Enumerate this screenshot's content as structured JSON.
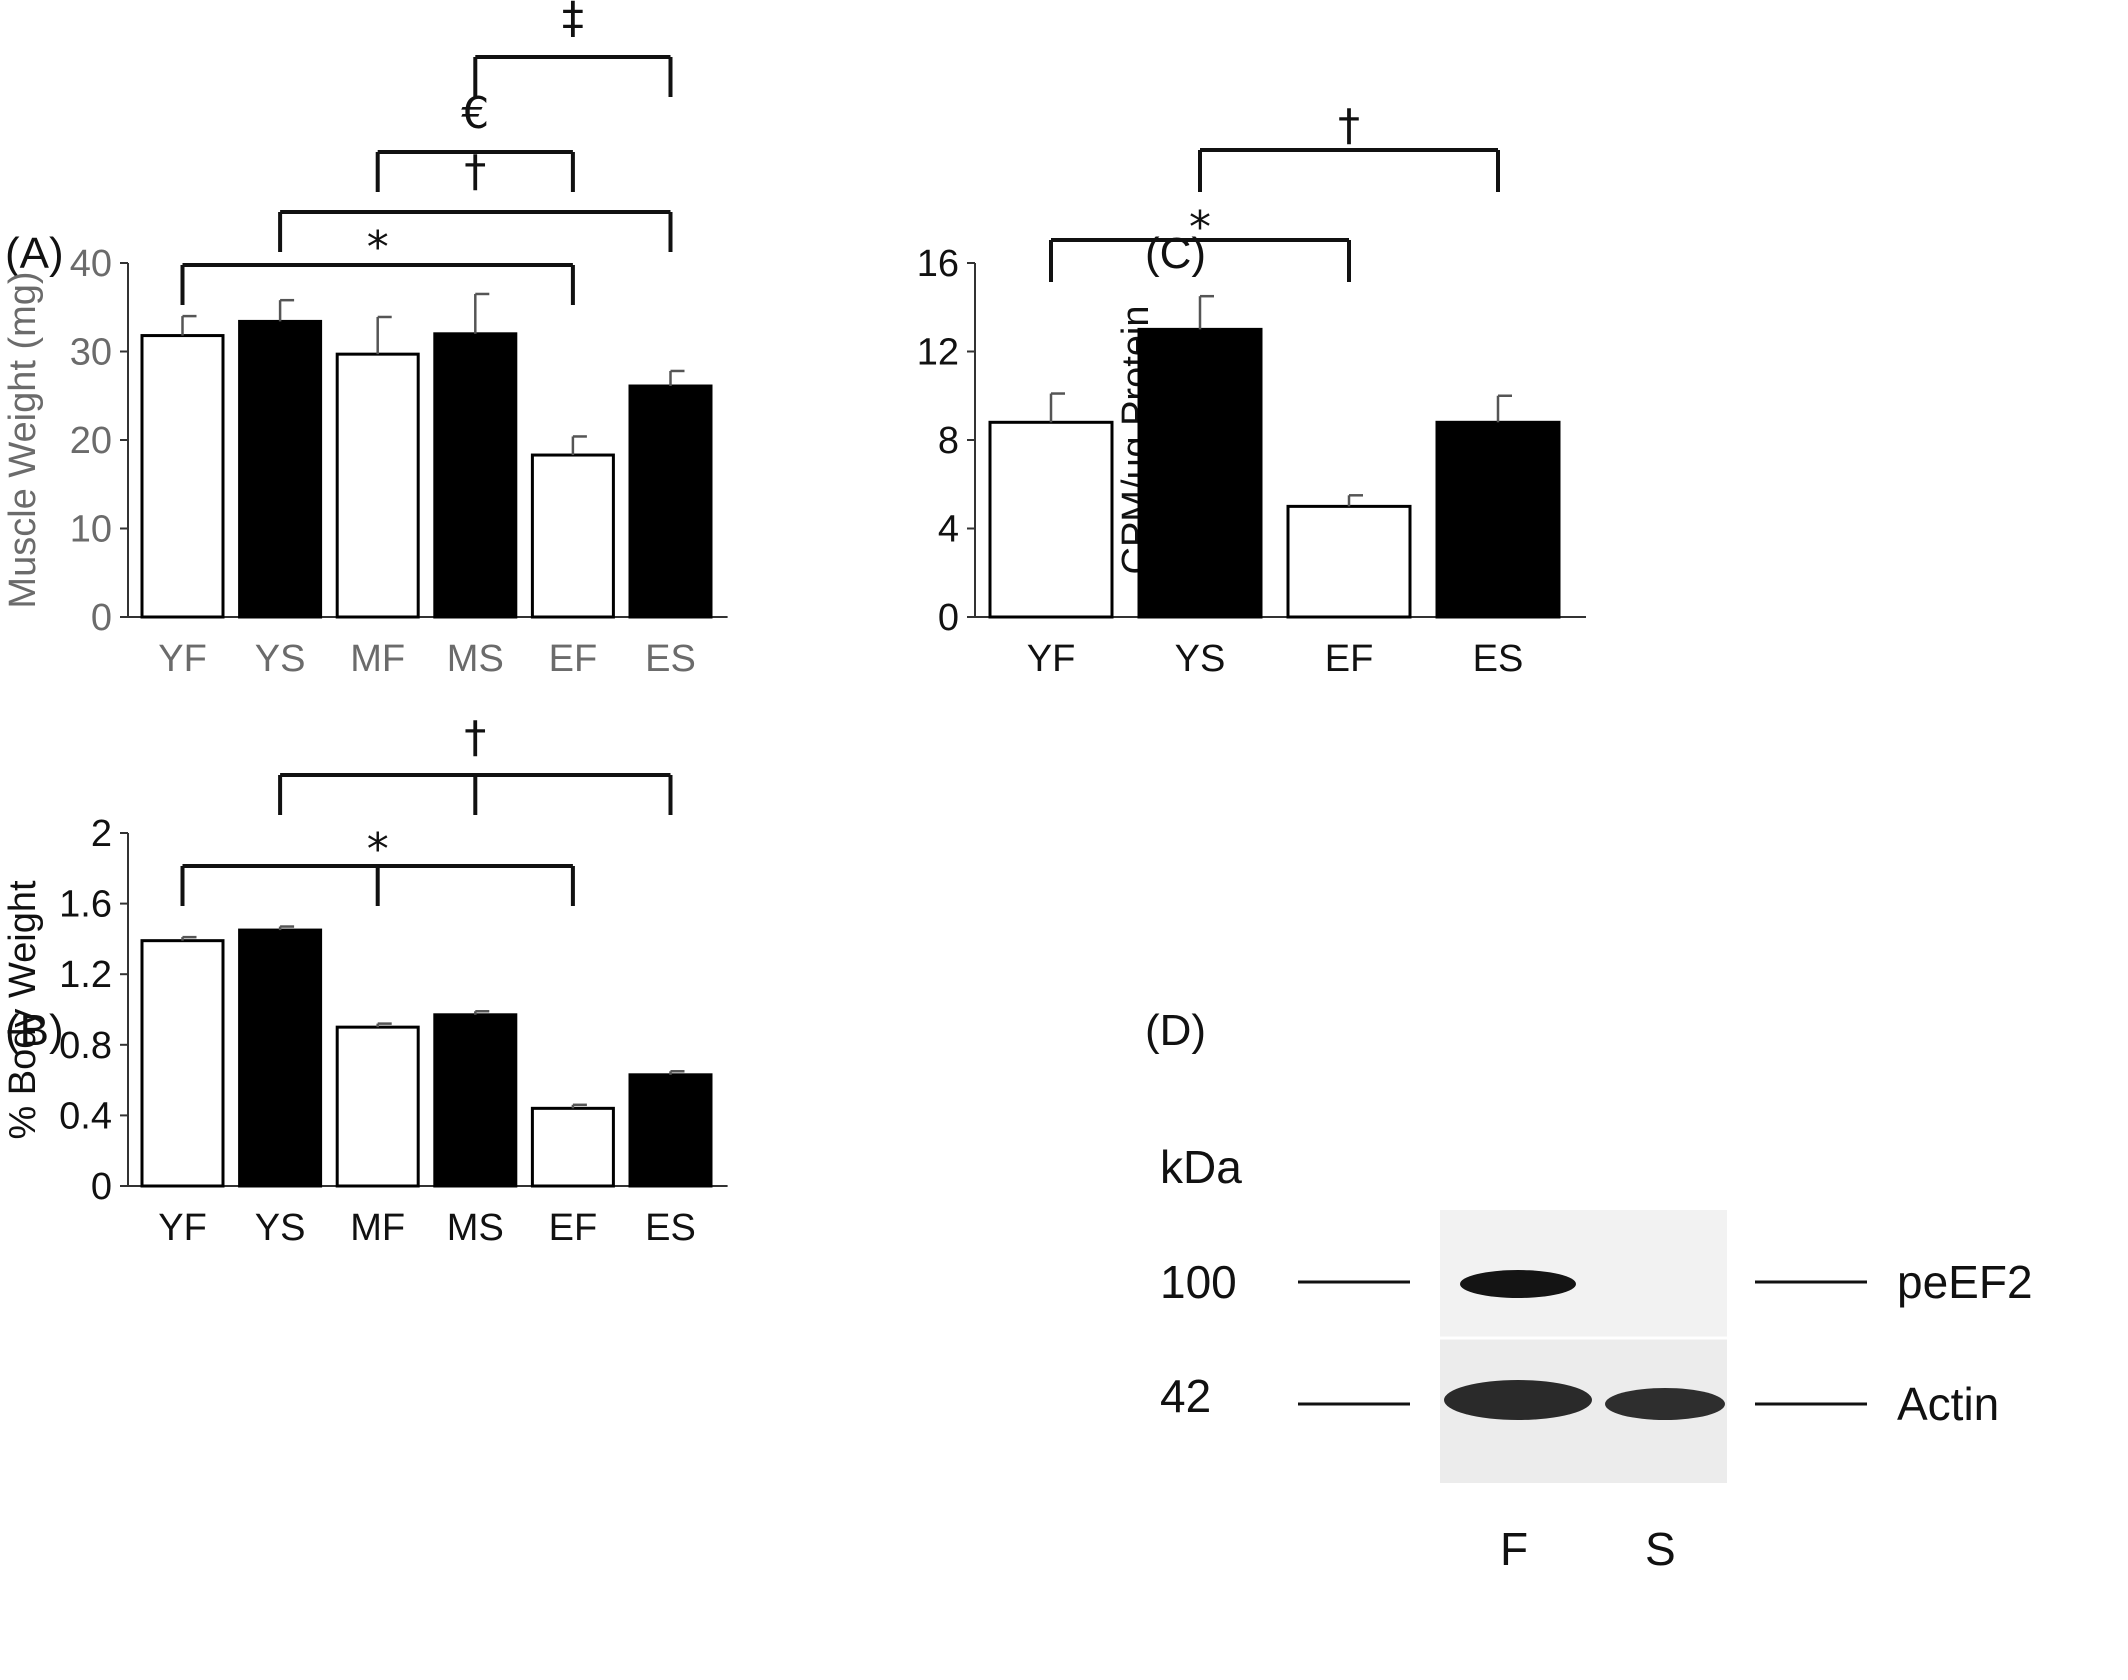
{
  "colors": {
    "filled": "#000000",
    "open": "#ffffff",
    "bar_stroke": "#000000",
    "axis_text_A": "#6b6b6b",
    "axis_text": "#111111",
    "axis_line": "#333333",
    "bracket": "#111111",
    "errbar": "#555555"
  },
  "chart_data": [
    {
      "panel": "(A)",
      "type": "bar",
      "ylabel": "Muscle Weight (mg)",
      "ylim": [
        0,
        40
      ],
      "yticks": [
        "0",
        "10",
        "20",
        "30",
        "40"
      ],
      "categories": [
        "YF",
        "YS",
        "MF",
        "MS",
        "EF",
        "ES"
      ],
      "values": [
        31.8,
        33.4,
        29.7,
        32.0,
        18.3,
        26.1
      ],
      "errors": [
        2.2,
        2.4,
        4.2,
        4.5,
        2.1,
        1.7
      ],
      "fills": [
        "open",
        "filled",
        "open",
        "filled",
        "open",
        "filled"
      ],
      "brackets": [
        {
          "symbol": "‡",
          "groups": [
            "MS",
            "ES"
          ]
        },
        {
          "symbol": "€",
          "groups": [
            "MF",
            "EF"
          ]
        },
        {
          "symbol": "†",
          "groups": [
            "YS",
            "ES"
          ]
        },
        {
          "symbol": "*",
          "groups": [
            "YF",
            "EF"
          ]
        }
      ]
    },
    {
      "panel": "(B)",
      "type": "bar",
      "ylabel": "% Body Weight",
      "ylim": [
        0,
        2
      ],
      "yticks": [
        "0",
        "0.4",
        "0.8",
        "1.2",
        "1.6",
        "2"
      ],
      "categories": [
        "YF",
        "YS",
        "MF",
        "MS",
        "EF",
        "ES"
      ],
      "values": [
        1.39,
        1.45,
        0.9,
        0.97,
        0.44,
        0.63
      ],
      "errors": [
        0.02,
        0.02,
        0.02,
        0.02,
        0.02,
        0.02
      ],
      "fills": [
        "open",
        "filled",
        "open",
        "filled",
        "open",
        "filled"
      ],
      "brackets": [
        {
          "symbol": "†",
          "groups": [
            "YS",
            "MS",
            "ES"
          ]
        },
        {
          "symbol": "*",
          "groups": [
            "YF",
            "MF",
            "EF"
          ]
        }
      ]
    },
    {
      "panel": "(C)",
      "type": "bar",
      "ylabel": "CPM/µg Protein",
      "ylim": [
        0,
        16
      ],
      "yticks": [
        "0",
        "4",
        "8",
        "12",
        "16"
      ],
      "categories": [
        "YF",
        "YS",
        "EF",
        "ES"
      ],
      "values": [
        8.8,
        13.0,
        5.0,
        8.8
      ],
      "errors": [
        1.3,
        1.5,
        0.5,
        1.2
      ],
      "fills": [
        "open",
        "filled",
        "open",
        "filled"
      ],
      "brackets": [
        {
          "symbol": "†",
          "groups": [
            "YS",
            "ES"
          ]
        },
        {
          "symbol": "*",
          "groups": [
            "YF",
            "EF"
          ]
        }
      ]
    }
  ],
  "blot": {
    "panel": "(D)",
    "unit": "kDa",
    "markers": [
      "100",
      "42"
    ],
    "bands": [
      "peEF2",
      "Actin"
    ],
    "lanes": [
      "F",
      "S"
    ]
  }
}
